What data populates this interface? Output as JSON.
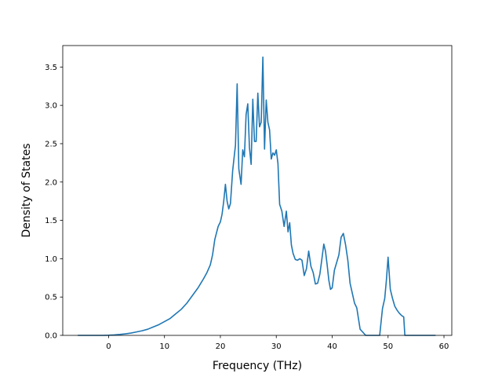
{
  "chart_data": {
    "type": "line",
    "title": "",
    "xlabel": "Frequency (THz)",
    "ylabel": "Density of States",
    "xlim": [
      -8.2,
      61.4
    ],
    "ylim": [
      0.0,
      3.78
    ],
    "xticks": [
      0,
      10,
      20,
      30,
      40,
      50,
      60
    ],
    "yticks": [
      0.0,
      0.5,
      1.0,
      1.5,
      2.0,
      2.5,
      3.0,
      3.5
    ],
    "grid": false,
    "legend": "none",
    "series": [
      {
        "color": "#1f77b4",
        "x": [
          -5.5,
          -3,
          -1,
          0,
          1,
          2,
          3,
          4,
          5,
          6,
          7,
          8,
          9,
          10,
          11,
          12,
          13,
          14,
          15,
          16,
          17,
          17.6,
          18.2,
          18.6,
          19.0,
          19.6,
          20.0,
          20.3,
          20.6,
          20.9,
          21.2,
          21.5,
          21.8,
          22.2,
          22.5,
          22.7,
          23.0,
          23.3,
          23.7,
          24.0,
          24.3,
          24.6,
          24.9,
          25.2,
          25.5,
          25.8,
          26.1,
          26.4,
          26.7,
          27.0,
          27.3,
          27.6,
          27.9,
          28.2,
          28.5,
          28.8,
          29.1,
          29.4,
          29.7,
          30.0,
          30.3,
          30.6,
          31.0,
          31.4,
          31.8,
          32.1,
          32.4,
          32.7,
          33.0,
          33.4,
          33.8,
          34.2,
          34.6,
          35.0,
          35.4,
          35.8,
          36.2,
          36.6,
          37.0,
          37.4,
          37.8,
          38.2,
          38.5,
          38.8,
          39.1,
          39.4,
          39.7,
          40.0,
          40.4,
          40.8,
          41.2,
          41.6,
          42.0,
          42.4,
          42.8,
          43.2,
          43.6,
          44.0,
          44.4,
          45.0,
          46.0,
          47.0,
          47.8,
          48.1,
          48.5,
          49.0,
          49.4,
          49.7,
          50.0,
          50.4,
          50.8,
          51.2,
          51.6,
          52.0,
          52.4,
          52.8,
          53.0,
          53.3,
          54.0,
          56.0,
          58.5
        ],
        "y": [
          0.0,
          0.0,
          0.0,
          0.002,
          0.006,
          0.012,
          0.02,
          0.03,
          0.045,
          0.06,
          0.08,
          0.11,
          0.14,
          0.18,
          0.22,
          0.28,
          0.34,
          0.42,
          0.52,
          0.62,
          0.74,
          0.82,
          0.92,
          1.05,
          1.25,
          1.42,
          1.48,
          1.58,
          1.75,
          1.97,
          1.75,
          1.65,
          1.72,
          2.15,
          2.35,
          2.48,
          3.28,
          2.17,
          1.97,
          2.42,
          2.33,
          2.88,
          3.02,
          2.45,
          2.23,
          3.08,
          2.53,
          2.53,
          3.16,
          2.72,
          2.78,
          3.63,
          2.43,
          3.07,
          2.78,
          2.68,
          2.3,
          2.38,
          2.35,
          2.42,
          2.24,
          1.71,
          1.62,
          1.42,
          1.62,
          1.35,
          1.47,
          1.18,
          1.07,
          0.99,
          0.98,
          1.0,
          0.98,
          0.78,
          0.87,
          1.1,
          0.9,
          0.82,
          0.67,
          0.68,
          0.8,
          1.02,
          1.19,
          1.1,
          0.92,
          0.72,
          0.6,
          0.62,
          0.85,
          0.95,
          1.05,
          1.28,
          1.33,
          1.18,
          0.98,
          0.68,
          0.55,
          0.42,
          0.36,
          0.08,
          0.0,
          0.0,
          0.0,
          0.0,
          0.0,
          0.35,
          0.48,
          0.72,
          1.02,
          0.6,
          0.48,
          0.38,
          0.33,
          0.29,
          0.26,
          0.24,
          0.0,
          0.0,
          0.0,
          0.0,
          0.0
        ]
      }
    ]
  }
}
